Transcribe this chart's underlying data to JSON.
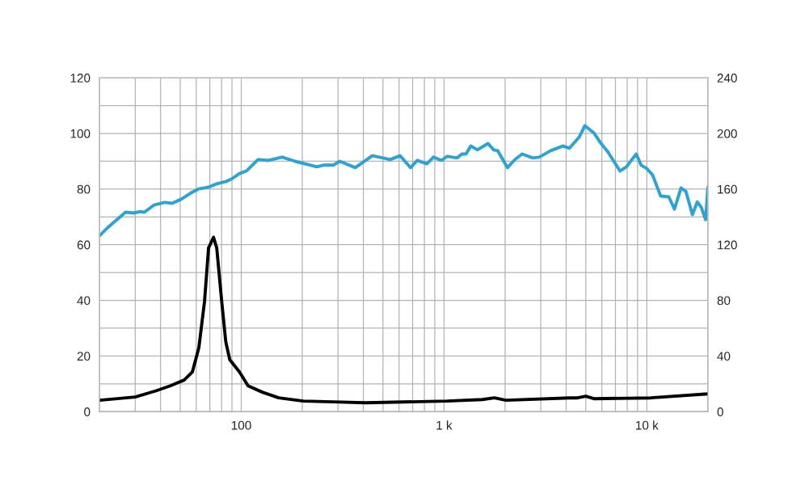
{
  "chart_data": {
    "type": "line",
    "log": "x",
    "grid": true,
    "marker": "none",
    "line_style": "solid",
    "xlim": [
      20,
      20000
    ],
    "xticks": [
      {
        "value": 30,
        "label": null
      },
      {
        "value": 40,
        "label": null
      },
      {
        "value": 50,
        "label": null
      },
      {
        "value": 60,
        "label": null
      },
      {
        "value": 70,
        "label": null
      },
      {
        "value": 80,
        "label": null
      },
      {
        "value": 90,
        "label": null
      },
      100,
      {
        "value": 200,
        "label": null
      },
      {
        "value": 300,
        "label": null
      },
      {
        "value": 400,
        "label": null
      },
      {
        "value": 500,
        "label": null
      },
      {
        "value": 600,
        "label": null
      },
      {
        "value": 700,
        "label": null
      },
      {
        "value": 800,
        "label": null
      },
      {
        "value": 900,
        "label": null
      },
      {
        "value": 1000,
        "label": "1 k"
      },
      {
        "value": 2000,
        "label": null
      },
      {
        "value": 3000,
        "label": null
      },
      {
        "value": 4000,
        "label": null
      },
      {
        "value": 5000,
        "label": null
      },
      {
        "value": 6000,
        "label": null
      },
      {
        "value": 7000,
        "label": null
      },
      {
        "value": 8000,
        "label": null
      },
      {
        "value": 9000,
        "label": null
      },
      {
        "value": 10000,
        "label": "10 k"
      }
    ],
    "ylim": [
      0,
      120
    ],
    "yticks": [
      0,
      {
        "value": 10,
        "label": null
      },
      20,
      {
        "value": 30,
        "label": null
      },
      40,
      {
        "value": 50,
        "label": null
      },
      60,
      {
        "value": 70,
        "label": null
      },
      80,
      {
        "value": 90,
        "label": null
      },
      100,
      {
        "value": 110,
        "label": null
      },
      120
    ],
    "y2lim": [
      0,
      240
    ],
    "y2ticks": [
      0,
      40,
      80,
      120,
      160,
      200,
      240
    ],
    "series": [
      {
        "color": "#2ba3d5",
        "x": [
          20,
          21.9,
          24.1,
          26.9,
          29.5,
          31.5,
          33.3,
          37.2,
          41.9,
          45.6,
          50.4,
          57.4,
          61.8,
          69,
          75.7,
          83.9,
          89.5,
          98.1,
          106,
          121,
          136,
          159,
          184,
          236,
          254,
          284,
          306,
          365,
          443,
          543,
          607,
          684,
          737,
          823,
          887,
          972,
          1037,
          1159,
          1225,
          1283,
          1356,
          1461,
          1647,
          1757,
          1840,
          2056,
          2234,
          2428,
          2738,
          2949,
          3358,
          3856,
          4154,
          4642,
          4950,
          5482,
          5902,
          6412,
          7368,
          7932,
          8866,
          9371,
          9998,
          10670,
          11700,
          12830,
          13690,
          14740,
          15580,
          16780,
          17730,
          18570,
          19500,
          20000
        ],
        "values": [
          63.2,
          66.1,
          68.7,
          71.7,
          71.4,
          71.9,
          71.7,
          74.3,
          75.2,
          74.9,
          76.3,
          78.9,
          80.1,
          80.7,
          81.9,
          82.7,
          83.6,
          85.6,
          86.5,
          90.6,
          90.3,
          91.5,
          90.0,
          88.0,
          88.6,
          88.6,
          90.0,
          87.7,
          92.0,
          90.6,
          92.0,
          87.7,
          90.3,
          89.1,
          91.5,
          90.3,
          91.8,
          91.2,
          92.6,
          92.6,
          95.5,
          94.1,
          96.4,
          94.1,
          93.8,
          87.7,
          90.6,
          92.6,
          91.2,
          91.5,
          93.8,
          95.5,
          94.7,
          98.7,
          102.8,
          100.2,
          96.7,
          93.5,
          86.5,
          88.0,
          92.6,
          88.6,
          87.4,
          85.1,
          77.5,
          77.2,
          72.8,
          80.4,
          79.2,
          70.8,
          75.4,
          73.4,
          69.0,
          80.7
        ]
      },
      {
        "color": "#000000",
        "axis": "y2",
        "x": [
          20,
          30,
          38.2,
          44.7,
          52.3,
          57.4,
          61.8,
          65.9,
          69,
          73,
          75.7,
          80.1,
          83.9,
          87.8,
          98.1,
          108,
          127,
          153,
          202,
          284,
          411,
          1037,
          1544,
          1773,
          2018,
          4154,
          4556,
          4996,
          5482,
          10470,
          20000
        ],
        "values": [
          8.2,
          10.5,
          15.1,
          18.6,
          22.7,
          28.5,
          46.0,
          79.2,
          117.7,
          125.3,
          117.7,
          79.2,
          50.1,
          37.3,
          28.5,
          18.6,
          14.0,
          9.9,
          7.6,
          7.0,
          6.4,
          7.6,
          8.7,
          9.9,
          8.2,
          9.9,
          9.9,
          11.1,
          9.3,
          9.9,
          12.8
        ]
      }
    ]
  }
}
